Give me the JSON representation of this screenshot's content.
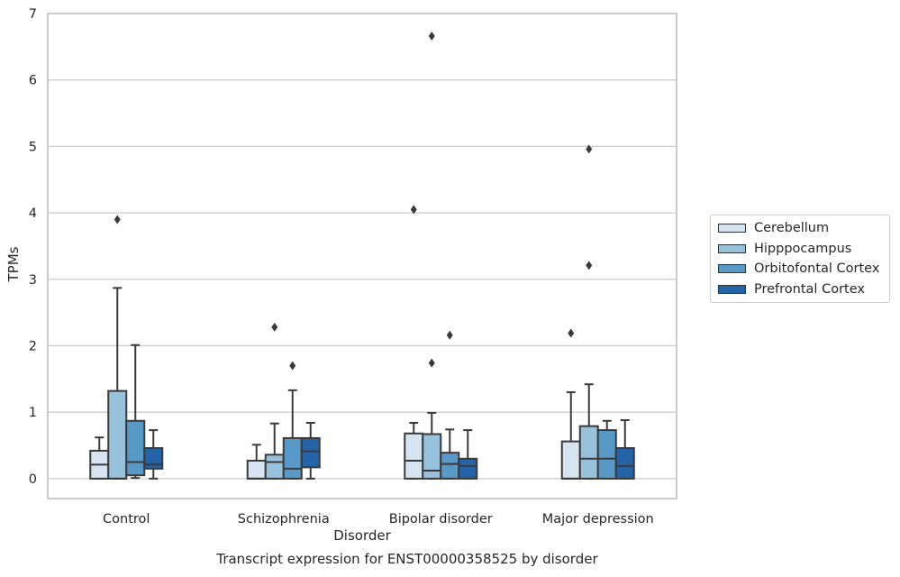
{
  "chart_data": {
    "type": "box",
    "title": "",
    "xlabel": "Disorder",
    "ylabel": "TPMs",
    "ylim": [
      -0.3,
      7.0
    ],
    "yticks": [
      0,
      1,
      2,
      3,
      4,
      5,
      6,
      7
    ],
    "grid": "horizontal",
    "legend_position": "right",
    "categories": [
      "Control",
      "Schizophrenia",
      "Bipolar disorder",
      "Major depression"
    ],
    "series": [
      {
        "name": "Cerebellum",
        "color": "#d6e4f2",
        "boxes": [
          {
            "whisker_low": 0,
            "q1": 0,
            "median": 0.21,
            "q3": 0.42,
            "whisker_high": 0.62,
            "outliers": []
          },
          {
            "whisker_low": 0,
            "q1": 0,
            "median": 0,
            "q3": 0.27,
            "whisker_high": 0.51,
            "outliers": []
          },
          {
            "whisker_low": 0,
            "q1": 0,
            "median": 0.27,
            "q3": 0.68,
            "whisker_high": 0.84,
            "outliers": [
              4.05
            ]
          },
          {
            "whisker_low": 0,
            "q1": 0,
            "median": 0,
            "q3": 0.56,
            "whisker_high": 1.3,
            "outliers": [
              2.19
            ]
          }
        ]
      },
      {
        "name": "Hipppocampus",
        "color": "#98c2dc",
        "boxes": [
          {
            "whisker_low": 0,
            "q1": 0,
            "median": 0,
            "q3": 1.32,
            "whisker_high": 2.87,
            "outliers": [
              3.9
            ]
          },
          {
            "whisker_low": 0,
            "q1": 0,
            "median": 0.25,
            "q3": 0.36,
            "whisker_high": 0.83,
            "outliers": [
              2.28
            ]
          },
          {
            "whisker_low": 0,
            "q1": 0,
            "median": 0.12,
            "q3": 0.67,
            "whisker_high": 0.99,
            "outliers": [
              6.66,
              1.74
            ]
          },
          {
            "whisker_low": 0,
            "q1": 0,
            "median": 0.3,
            "q3": 0.79,
            "whisker_high": 1.42,
            "outliers": [
              4.96,
              3.21
            ]
          }
        ]
      },
      {
        "name": "Orbitofontal Cortex",
        "color": "#5899c7",
        "boxes": [
          {
            "whisker_low": 0.01,
            "q1": 0.05,
            "median": 0.25,
            "q3": 0.87,
            "whisker_high": 2.01,
            "outliers": []
          },
          {
            "whisker_low": 0,
            "q1": 0,
            "median": 0.15,
            "q3": 0.61,
            "whisker_high": 1.33,
            "outliers": [
              1.7
            ]
          },
          {
            "whisker_low": 0,
            "q1": 0,
            "median": 0.22,
            "q3": 0.39,
            "whisker_high": 0.74,
            "outliers": [
              2.16
            ]
          },
          {
            "whisker_low": 0,
            "q1": 0,
            "median": 0.3,
            "q3": 0.73,
            "whisker_high": 0.87,
            "outliers": []
          }
        ]
      },
      {
        "name": "Prefrontal Cortex",
        "color": "#2463a8",
        "boxes": [
          {
            "whisker_low": 0,
            "q1": 0.15,
            "median": 0.21,
            "q3": 0.46,
            "whisker_high": 0.73,
            "outliers": []
          },
          {
            "whisker_low": 0,
            "q1": 0.17,
            "median": 0.41,
            "q3": 0.61,
            "whisker_high": 0.84,
            "outliers": []
          },
          {
            "whisker_low": 0,
            "q1": 0,
            "median": 0.19,
            "q3": 0.3,
            "whisker_high": 0.73,
            "outliers": []
          },
          {
            "whisker_low": 0,
            "q1": 0,
            "median": 0.19,
            "q3": 0.46,
            "whisker_high": 0.88,
            "outliers": []
          }
        ]
      }
    ]
  },
  "caption": "Transcript expression for ENST00000358525 by disorder"
}
